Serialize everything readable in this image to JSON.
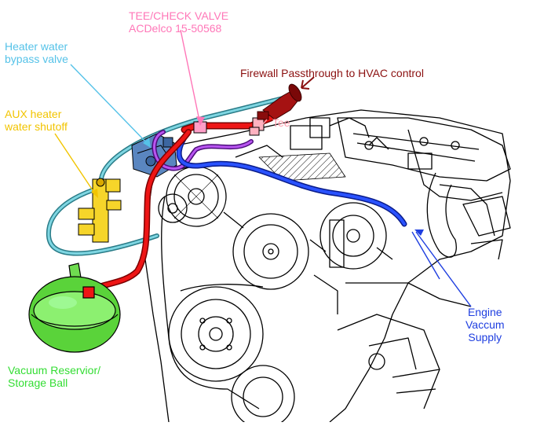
{
  "labels": {
    "tee_check_valve": [
      "TEE/CHECK VALVE",
      "ACDelco 15-50568"
    ],
    "heater_bypass": [
      "Heater water",
      "bypass valve"
    ],
    "firewall": "Firewall Passthrough to HVAC control",
    "tee": "Tee",
    "aux_shutoff": [
      "AUX heater",
      "water shutoff"
    ],
    "engine_vacuum": [
      "Engine",
      "Vaccum",
      "Supply"
    ],
    "vacuum_reservoir": [
      "Vacuum Reservior/",
      "Storage Ball"
    ]
  },
  "colors": {
    "tee_check_valve": "#ff77b8",
    "heater_bypass": "#55c2e8",
    "firewall": "#8b1010",
    "tee": "#ff9aaa",
    "aux_shutoff": "#f2c400",
    "engine_vacuum": "#1e3ee0",
    "vacuum_reservoir": "#33dd33",
    "red_hose": "#e81010",
    "blue_hose": "#1e3ee0",
    "purple_hose": "#9a2be0",
    "teal_hose": "#4fb6c8"
  }
}
